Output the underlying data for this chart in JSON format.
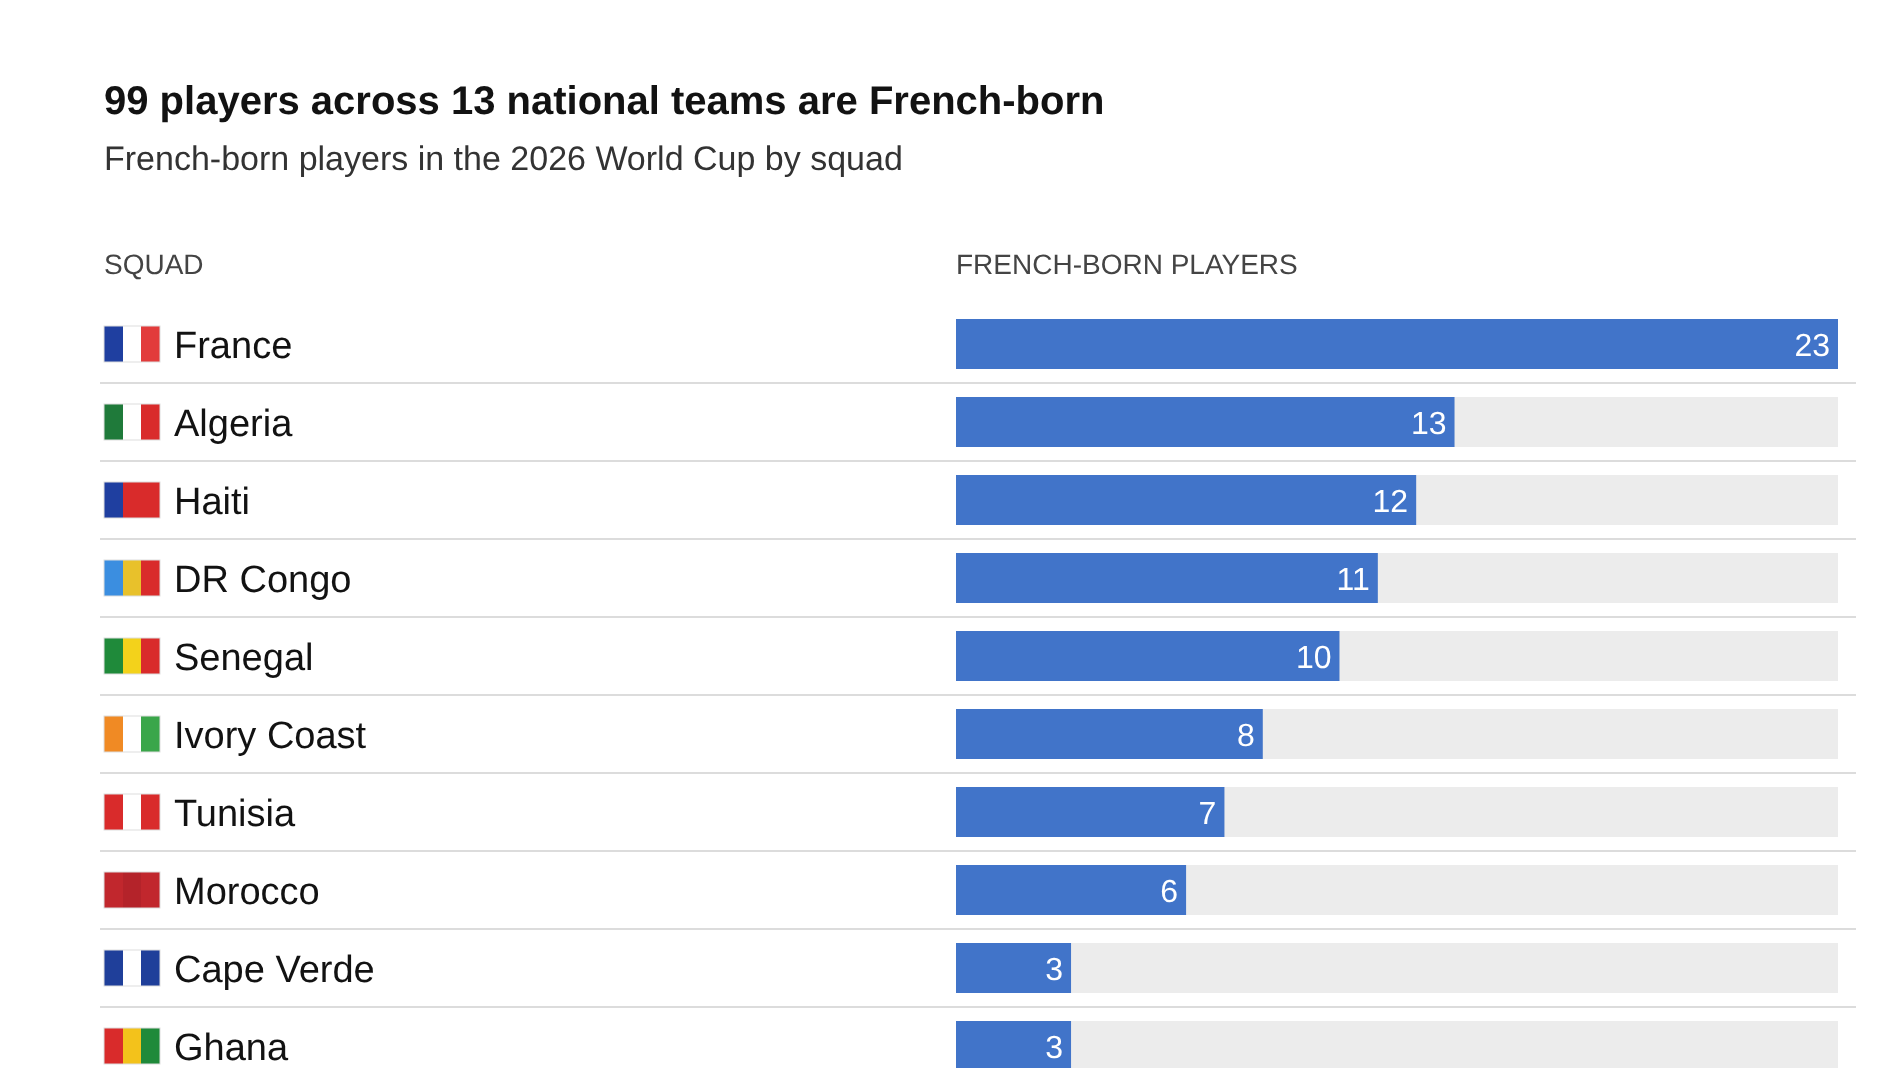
{
  "chart_data": {
    "type": "bar",
    "orientation": "horizontal",
    "title": "99 players across 13 national teams are French-born",
    "subtitle": "French-born players in the 2026 World Cup by squad",
    "ylabel": "SQUAD",
    "xlabel": "FRENCH-BORN PLAYERS",
    "categories": [
      "France",
      "Algeria",
      "Haiti",
      "DR Congo",
      "Senegal",
      "Ivory Coast",
      "Tunisia",
      "Morocco",
      "Cape Verde",
      "Ghana"
    ],
    "values": [
      23,
      13,
      12,
      11,
      10,
      8,
      7,
      6,
      3,
      3
    ],
    "color": "#4174c9",
    "xlim": [
      0,
      23
    ],
    "data_labels": true,
    "grid": "y",
    "tick_labels": "y"
  }
}
